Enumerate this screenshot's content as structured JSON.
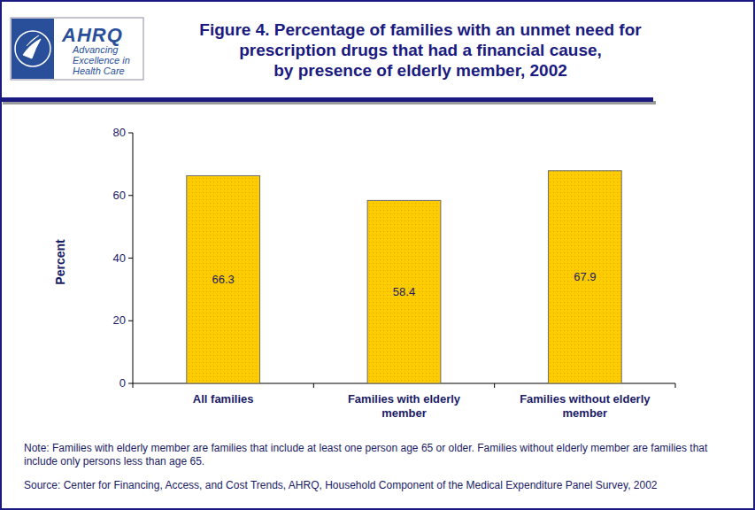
{
  "chart_data": {
    "type": "bar",
    "title": "Figure 4. Percentage of families with an unmet need for\nprescription drugs that had a financial cause,\nby presence of elderly member, 2002",
    "logo": [
      "AHRQ",
      "Advancing",
      "Excellence in",
      "Health Care"
    ],
    "ylabel": "Percent",
    "categories": [
      "All families",
      "Families with elderly member",
      "Families without elderly member"
    ],
    "values": [
      66.3,
      58.4,
      67.9
    ],
    "color": "#ffcc00",
    "ylim": [
      0,
      80
    ],
    "yticks": [
      0,
      20,
      40,
      60,
      80
    ],
    "grid": false,
    "data_labels": true,
    "note": "Note: Families with elderly member are families that include at least one person age 65 or older. Families without elderly member are families that include only persons less than age 65.",
    "source": "Source: Center for Financing, Access, and Cost Trends, AHRQ, Household Component of the Medical Expenditure Panel Survey, 2002"
  }
}
